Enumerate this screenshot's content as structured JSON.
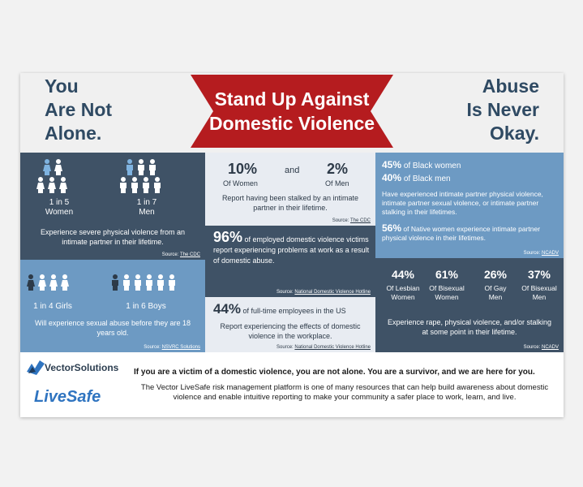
{
  "header": {
    "title_line1": "Stand Up Against",
    "title_line2": "Domestic Violence",
    "left_line1": "You",
    "left_line2": "Are Not",
    "left_line3": "Alone.",
    "right_line1": "Abuse",
    "right_line2": "Is Never",
    "right_line3": "Okay."
  },
  "p1": {
    "women_stat": "1 in 5",
    "women_label": "Women",
    "men_stat": "1 in 7",
    "men_label": "Men",
    "text": "Experience severe physical violence from an intimate partner in their lifetime.",
    "source_prefix": "Source: ",
    "source_link": "The CDC"
  },
  "p2": {
    "girls_label": "1 in 4 Girls",
    "boys_label": "1 in 6 Boys",
    "text": "Will experience sexual abuse before they are 18 years old.",
    "source_prefix": "Source: ",
    "source_link": "NSVRC Solutions"
  },
  "p3": {
    "women_pct": "10%",
    "women_label": "Of Women",
    "and": "and",
    "men_pct": "2%",
    "men_label": "Of Men",
    "text": "Report having been stalked by an intimate partner in their lifetime.",
    "source_prefix": "Source: ",
    "source_link": "The CDC"
  },
  "p4": {
    "pct": "96%",
    "text": "of employed domestic violence victims report experiencing problems at work as a result of domestic abuse.",
    "source_prefix": "Source: ",
    "source_link": "National Domestic Violence Hotline"
  },
  "p5": {
    "pct": "44%",
    "intro": "of full-time employees in the US",
    "text": "Report experiencing the effects of domestic violence in the workplace.",
    "source_prefix": "Source: ",
    "source_link": "National Domestic Violence Hotline"
  },
  "p6": {
    "black_women_pct": "45%",
    "black_women_label": "of Black women",
    "black_men_pct": "40%",
    "black_men_label": "of Black men",
    "text": "Have experienced intimate partner physical violence, intimate partner sexual violence, or intimate partner stalking in their lifetimes.",
    "native_pct": "56%",
    "native_text": "of Native women experience intimate partner physical violence in their lifetimes.",
    "source_prefix": "Source: ",
    "source_link": "NCADV"
  },
  "p7": {
    "stats": [
      {
        "pct": "44%",
        "line1": "Of Lesbian",
        "line2": "Women"
      },
      {
        "pct": "61%",
        "line1": "Of Bisexual",
        "line2": "Women"
      },
      {
        "pct": "26%",
        "line1": "Of Gay",
        "line2": "Men"
      },
      {
        "pct": "37%",
        "line1": "Of Bisexual",
        "line2": "Men"
      }
    ],
    "text": "Experience rape, physical violence, and/or stalking at some point in their lifetime.",
    "source_prefix": "Source: ",
    "source_link": "NCADV"
  },
  "footer": {
    "vector_logo": "VectorSolutions",
    "livesafe_logo": "LiveSafe",
    "bold_text": "If you are a victim of a domestic violence, you are not alone. You are a survivor, and we are here for you.",
    "body_text": "The Vector LiveSafe risk management platform is one of many resources that can help build awareness about domestic violence and enable intuitive reporting to make your community a safer place to work, learn, and live."
  },
  "colors": {
    "banner": "#b51c1f",
    "dark_panel": "#3f5266",
    "medium_panel": "#6d9ac3",
    "light_panel": "#e8ecf2",
    "highlight_person": "#7fb3e0"
  }
}
